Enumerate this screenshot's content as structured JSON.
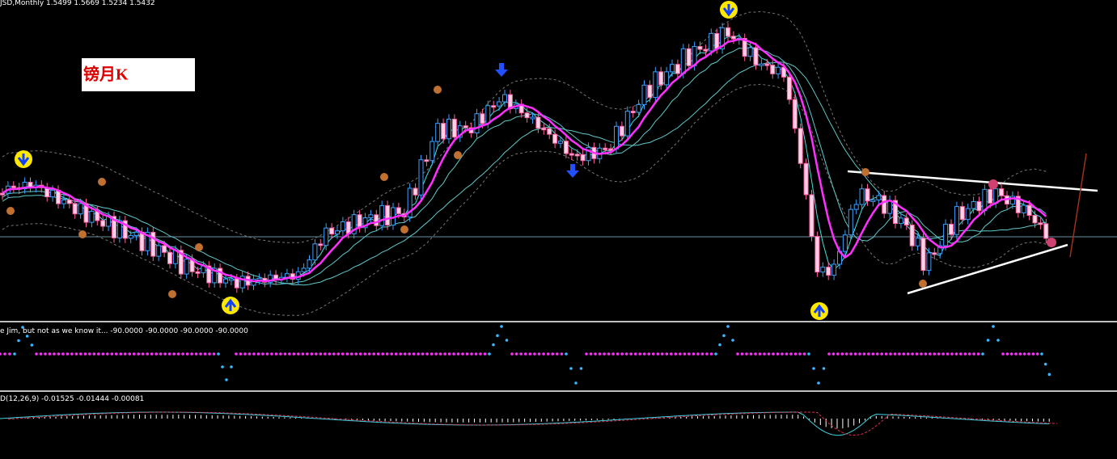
{
  "header": {
    "symbol_line": "JSD,Monthly  1.5499 1.5669 1.5234 1.5432"
  },
  "chart_label": "镑月K",
  "indicator": {
    "title": "e Jim, but not as we know it...  -90.0000 -90.0000 -90.0000 -90.0000"
  },
  "macd": {
    "title": "D(12,26,9) -0.01525 -0.01444 -0.00081"
  }
}
